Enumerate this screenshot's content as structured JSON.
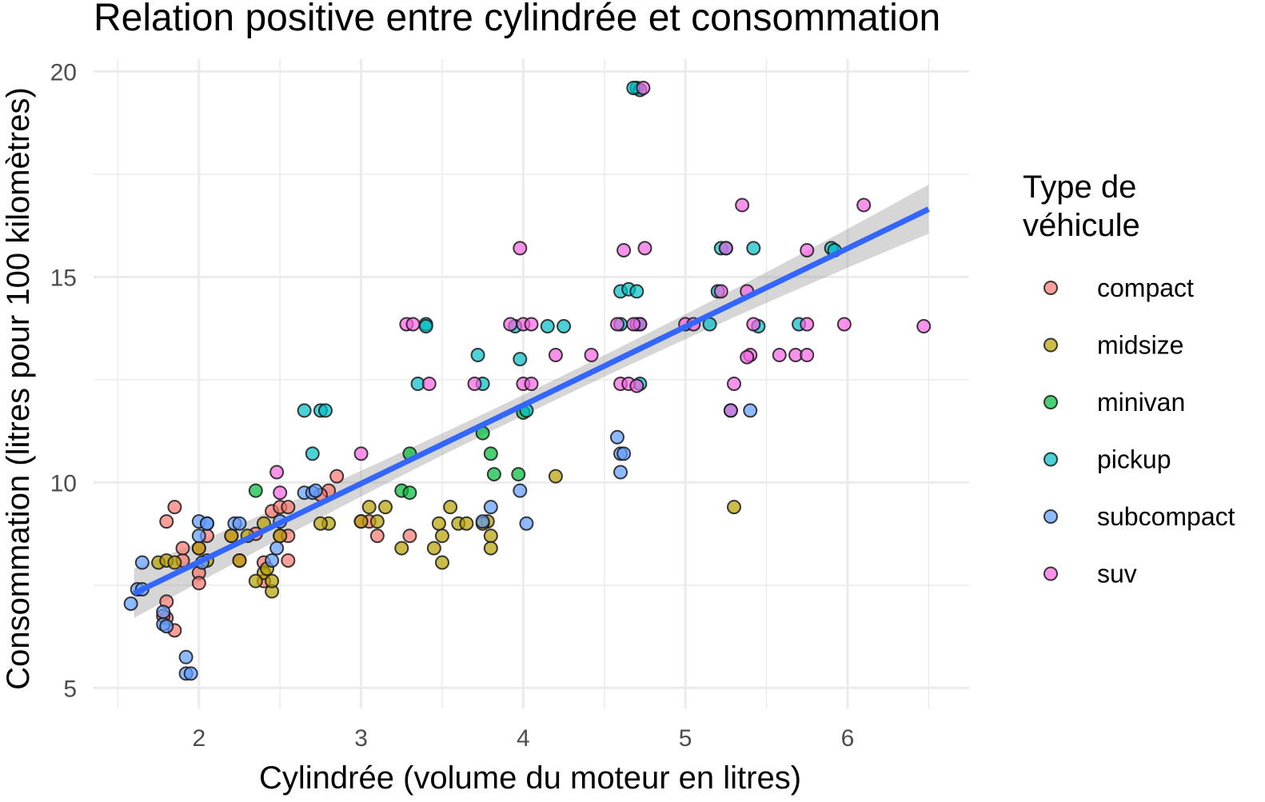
{
  "chart_data": {
    "type": "scatter",
    "title": "Relation positive entre cylindrée et consommation",
    "xlabel": "Cylindrée (volume du moteur en litres)",
    "ylabel": "Consommation (litres pour 100 kilomètres)",
    "xlim": [
      1.35,
      6.75
    ],
    "ylim": [
      4.5,
      20.3
    ],
    "x_ticks": [
      2,
      3,
      4,
      5,
      6
    ],
    "y_ticks": [
      5,
      10,
      15,
      20
    ],
    "grid": true,
    "legend": {
      "title": "Type de véhicule",
      "placement": "right"
    },
    "series": [
      {
        "name": "compact",
        "color": "#F8766D",
        "points": [
          [
            1.8,
            9.05
          ],
          [
            1.8,
            7.1
          ],
          [
            1.8,
            6.7
          ],
          [
            1.85,
            9.4
          ],
          [
            1.9,
            8.1
          ],
          [
            1.85,
            6.4
          ],
          [
            1.9,
            8.4
          ],
          [
            2.0,
            8.4
          ],
          [
            2.0,
            7.8
          ],
          [
            2.0,
            7.55
          ],
          [
            2.05,
            8.7
          ],
          [
            2.2,
            8.7
          ],
          [
            2.25,
            8.1
          ],
          [
            2.4,
            8.05
          ],
          [
            2.4,
            7.6
          ],
          [
            2.45,
            9.3
          ],
          [
            2.5,
            9.4
          ],
          [
            2.5,
            8.7
          ],
          [
            2.55,
            9.4
          ],
          [
            2.55,
            8.1
          ],
          [
            2.8,
            9.8
          ],
          [
            2.85,
            10.15
          ],
          [
            2.75,
            9.7
          ],
          [
            3.0,
            9.05
          ],
          [
            3.05,
            9.05
          ],
          [
            3.1,
            8.7
          ],
          [
            3.3,
            8.7
          ],
          [
            1.78,
            6.75
          ],
          [
            2.35,
            8.75
          ],
          [
            2.55,
            8.7
          ]
        ]
      },
      {
        "name": "midsize",
        "color": "#B79F00",
        "points": [
          [
            1.75,
            8.05
          ],
          [
            1.8,
            8.1
          ],
          [
            1.85,
            8.05
          ],
          [
            2.0,
            8.4
          ],
          [
            2.05,
            8.1
          ],
          [
            2.2,
            8.7
          ],
          [
            2.25,
            8.1
          ],
          [
            2.3,
            8.7
          ],
          [
            2.4,
            9.0
          ],
          [
            2.4,
            7.8
          ],
          [
            2.35,
            7.6
          ],
          [
            2.45,
            7.35
          ],
          [
            2.45,
            7.6
          ],
          [
            2.5,
            8.7
          ],
          [
            2.8,
            9.0
          ],
          [
            2.75,
            9.0
          ],
          [
            3.0,
            9.05
          ],
          [
            3.05,
            9.4
          ],
          [
            3.1,
            9.05
          ],
          [
            3.15,
            9.4
          ],
          [
            3.25,
            8.4
          ],
          [
            3.45,
            8.4
          ],
          [
            3.48,
            9.0
          ],
          [
            3.5,
            8.05
          ],
          [
            3.5,
            8.7
          ],
          [
            3.55,
            9.4
          ],
          [
            3.6,
            9.0
          ],
          [
            3.65,
            9.0
          ],
          [
            3.78,
            9.05
          ],
          [
            3.8,
            8.7
          ],
          [
            3.8,
            8.4
          ],
          [
            3.75,
            9.0
          ],
          [
            4.2,
            10.15
          ],
          [
            5.3,
            9.4
          ],
          [
            2.42,
            7.9
          ]
        ]
      },
      {
        "name": "minivan",
        "color": "#00BA38",
        "points": [
          [
            2.35,
            9.8
          ],
          [
            3.25,
            9.8
          ],
          [
            3.3,
            9.75
          ],
          [
            3.3,
            10.7
          ],
          [
            3.75,
            11.2
          ],
          [
            3.8,
            10.7
          ],
          [
            3.82,
            10.2
          ],
          [
            3.97,
            10.2
          ],
          [
            4.0,
            11.7
          ]
        ]
      },
      {
        "name": "pickup",
        "color": "#00BFC4",
        "points": [
          [
            2.65,
            11.75
          ],
          [
            2.7,
            10.7
          ],
          [
            2.75,
            11.75
          ],
          [
            2.78,
            11.75
          ],
          [
            3.35,
            12.4
          ],
          [
            3.4,
            13.85
          ],
          [
            3.4,
            13.8
          ],
          [
            3.72,
            13.1
          ],
          [
            3.75,
            12.4
          ],
          [
            3.95,
            13.8
          ],
          [
            3.98,
            13.0
          ],
          [
            4.02,
            11.75
          ],
          [
            4.15,
            13.8
          ],
          [
            4.25,
            13.8
          ],
          [
            4.6,
            14.65
          ],
          [
            4.6,
            13.85
          ],
          [
            4.65,
            14.7
          ],
          [
            4.7,
            14.65
          ],
          [
            4.7,
            13.85
          ],
          [
            4.72,
            12.4
          ],
          [
            4.7,
            19.6
          ],
          [
            4.72,
            19.55
          ],
          [
            4.68,
            19.6
          ],
          [
            5.15,
            13.85
          ],
          [
            5.2,
            14.65
          ],
          [
            5.22,
            15.7
          ],
          [
            5.25,
            15.7
          ],
          [
            5.42,
            15.7
          ],
          [
            5.45,
            13.8
          ],
          [
            5.7,
            13.85
          ],
          [
            5.9,
            15.7
          ],
          [
            5.92,
            15.65
          ],
          [
            5.28,
            11.75
          ],
          [
            4.72,
            13.85
          ]
        ]
      },
      {
        "name": "subcompact",
        "color": "#619CFF",
        "points": [
          [
            1.58,
            7.05
          ],
          [
            1.62,
            7.4
          ],
          [
            1.65,
            7.4
          ],
          [
            1.65,
            8.05
          ],
          [
            1.78,
            6.55
          ],
          [
            1.78,
            6.85
          ],
          [
            1.8,
            6.5
          ],
          [
            1.92,
            5.35
          ],
          [
            1.95,
            5.35
          ],
          [
            1.92,
            5.75
          ],
          [
            2.0,
            9.05
          ],
          [
            2.0,
            8.7
          ],
          [
            2.02,
            8.05
          ],
          [
            2.05,
            9.0
          ],
          [
            2.05,
            9.0
          ],
          [
            2.22,
            9.0
          ],
          [
            2.25,
            9.0
          ],
          [
            2.45,
            8.1
          ],
          [
            2.48,
            8.4
          ],
          [
            2.5,
            9.05
          ],
          [
            2.65,
            9.75
          ],
          [
            2.7,
            9.75
          ],
          [
            2.72,
            9.8
          ],
          [
            3.75,
            9.05
          ],
          [
            3.8,
            9.4
          ],
          [
            3.98,
            9.8
          ],
          [
            4.02,
            9.0
          ],
          [
            4.58,
            11.1
          ],
          [
            4.6,
            10.25
          ],
          [
            4.6,
            10.7
          ],
          [
            4.62,
            10.7
          ],
          [
            5.4,
            11.75
          ]
        ]
      },
      {
        "name": "suv",
        "color": "#F564E3",
        "points": [
          [
            2.48,
            10.25
          ],
          [
            2.5,
            9.75
          ],
          [
            3.0,
            10.7
          ],
          [
            3.28,
            13.85
          ],
          [
            3.32,
            13.85
          ],
          [
            3.42,
            12.4
          ],
          [
            3.7,
            12.4
          ],
          [
            3.92,
            13.85
          ],
          [
            3.98,
            15.7
          ],
          [
            4.0,
            13.85
          ],
          [
            4.0,
            12.4
          ],
          [
            4.05,
            12.4
          ],
          [
            4.05,
            13.85
          ],
          [
            4.2,
            13.1
          ],
          [
            4.42,
            13.1
          ],
          [
            4.58,
            13.85
          ],
          [
            4.6,
            12.4
          ],
          [
            4.62,
            15.65
          ],
          [
            4.65,
            12.4
          ],
          [
            4.7,
            12.35
          ],
          [
            4.72,
            13.85
          ],
          [
            4.75,
            15.7
          ],
          [
            4.74,
            19.6
          ],
          [
            4.68,
            13.85
          ],
          [
            5.0,
            13.85
          ],
          [
            5.05,
            13.85
          ],
          [
            5.22,
            14.65
          ],
          [
            5.25,
            15.7
          ],
          [
            5.28,
            11.75
          ],
          [
            5.3,
            12.4
          ],
          [
            5.35,
            16.75
          ],
          [
            5.38,
            14.65
          ],
          [
            5.4,
            13.1
          ],
          [
            5.42,
            13.85
          ],
          [
            5.58,
            13.1
          ],
          [
            5.68,
            13.1
          ],
          [
            5.75,
            13.1
          ],
          [
            5.75,
            13.85
          ],
          [
            5.75,
            15.65
          ],
          [
            5.98,
            13.85
          ],
          [
            6.1,
            16.75
          ],
          [
            6.47,
            13.8
          ],
          [
            5.38,
            13.05
          ]
        ]
      }
    ],
    "trend_line": {
      "type": "linear",
      "color": "#3366FF",
      "x": [
        1.6,
        6.5
      ],
      "y": [
        7.3,
        16.65
      ],
      "ci_band_half_width": [
        0.25,
        0.6
      ]
    }
  }
}
